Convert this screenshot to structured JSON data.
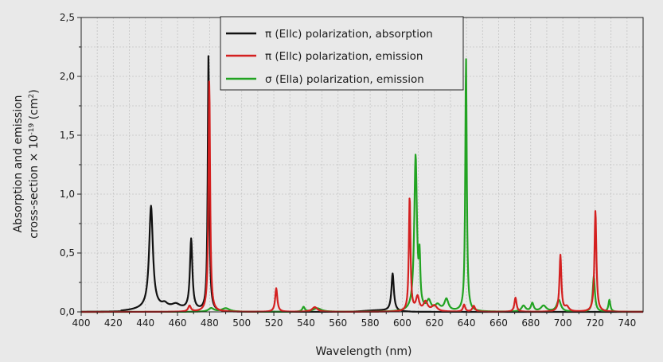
{
  "chart_data": {
    "type": "line",
    "title": "",
    "xlabel": "Wavelength (nm)",
    "ylabel_line1": "Absorption and emission",
    "ylabel_line2_prefix": "cross-section × 10",
    "ylabel_line2_exp": "-19",
    "ylabel_line2_suffix": " (cm",
    "ylabel_line2_exp2": "2",
    "ylabel_line2_end": ")",
    "xlim": [
      400,
      750
    ],
    "ylim": [
      0,
      2.5
    ],
    "x_ticks": [
      400,
      420,
      440,
      460,
      480,
      500,
      520,
      540,
      560,
      580,
      600,
      620,
      640,
      660,
      680,
      700,
      720,
      740
    ],
    "y_ticks": [
      {
        "value": 0,
        "label": "0,0"
      },
      {
        "value": 0.5,
        "label": "0,5"
      },
      {
        "value": 1.0,
        "label": "1,0"
      },
      {
        "value": 1.5,
        "label": "1,5"
      },
      {
        "value": 2.0,
        "label": "2,0"
      },
      {
        "value": 2.5,
        "label": "2,5"
      }
    ],
    "grid": true,
    "legend_position": "top-center",
    "series": [
      {
        "name": "π (Ellc) polarization, absorption",
        "color": "#111111",
        "peaks": [
          {
            "x": 443.5,
            "h": 0.87,
            "w": 1.4
          },
          {
            "x": 468.5,
            "h": 0.6,
            "w": 0.9
          },
          {
            "x": 479.3,
            "h": 2.18,
            "w": 0.55
          },
          {
            "x": 594.0,
            "h": 0.32,
            "w": 0.9
          },
          {
            "x": 452.0,
            "h": 0.03,
            "w": 2.0
          },
          {
            "x": 459.0,
            "h": 0.035,
            "w": 3.0
          }
        ],
        "background": {
          "x": 450,
          "h": 0.03,
          "w": 20,
          "xmin": 425,
          "xmax": 485
        },
        "background2": {
          "x": 585,
          "h": 0.012,
          "w": 12,
          "xmin": 560,
          "xmax": 605
        }
      },
      {
        "name": "π (Ellc) polarization, emission",
        "color": "#d42020",
        "peaks": [
          {
            "x": 467.5,
            "h": 0.05,
            "w": 1.0
          },
          {
            "x": 479.8,
            "h": 1.97,
            "w": 0.6
          },
          {
            "x": 521.5,
            "h": 0.2,
            "w": 0.8
          },
          {
            "x": 545.5,
            "h": 0.04,
            "w": 2.0
          },
          {
            "x": 604.6,
            "h": 0.98,
            "w": 0.6
          },
          {
            "x": 609.5,
            "h": 0.12,
            "w": 1.2
          },
          {
            "x": 614.5,
            "h": 0.08,
            "w": 1.5
          },
          {
            "x": 620.0,
            "h": 0.05,
            "w": 2.0
          },
          {
            "x": 638.5,
            "h": 0.06,
            "w": 0.8
          },
          {
            "x": 644.5,
            "h": 0.05,
            "w": 1.0
          },
          {
            "x": 670.5,
            "h": 0.12,
            "w": 0.8
          },
          {
            "x": 698.5,
            "h": 0.48,
            "w": 0.7
          },
          {
            "x": 702.5,
            "h": 0.04,
            "w": 1.5
          },
          {
            "x": 720.3,
            "h": 0.86,
            "w": 0.7
          }
        ]
      },
      {
        "name": "σ (Ella) polarization, emission",
        "color": "#22a322",
        "peaks": [
          {
            "x": 481.0,
            "h": 0.03,
            "w": 2.0
          },
          {
            "x": 490.0,
            "h": 0.03,
            "w": 3.0
          },
          {
            "x": 538.5,
            "h": 0.04,
            "w": 0.9
          },
          {
            "x": 547.0,
            "h": 0.03,
            "w": 3.0
          },
          {
            "x": 608.3,
            "h": 1.32,
            "w": 1.0
          },
          {
            "x": 610.8,
            "h": 0.38,
            "w": 0.5
          },
          {
            "x": 616.5,
            "h": 0.08,
            "w": 1.5
          },
          {
            "x": 622.0,
            "h": 0.05,
            "w": 2.0
          },
          {
            "x": 627.5,
            "h": 0.1,
            "w": 1.5
          },
          {
            "x": 639.7,
            "h": 2.16,
            "w": 0.55
          },
          {
            "x": 675.5,
            "h": 0.05,
            "w": 1.5
          },
          {
            "x": 681.0,
            "h": 0.07,
            "w": 1.0
          },
          {
            "x": 688.0,
            "h": 0.05,
            "w": 2.0
          },
          {
            "x": 697.5,
            "h": 0.1,
            "w": 1.5
          },
          {
            "x": 719.3,
            "h": 0.3,
            "w": 0.8
          },
          {
            "x": 729.0,
            "h": 0.1,
            "w": 0.7
          }
        ]
      }
    ]
  }
}
